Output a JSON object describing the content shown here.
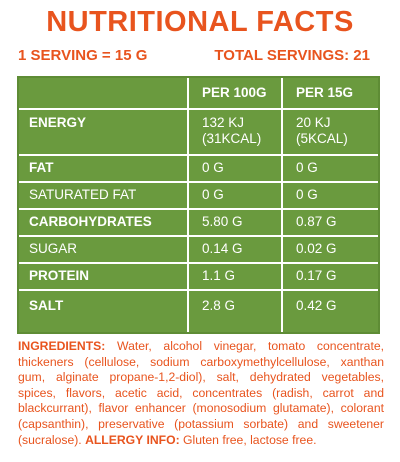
{
  "title": "NUTRITIONAL FACTS",
  "serving": {
    "size": "1 SERVING = 15 G",
    "total": "TOTAL SERVINGS: 21"
  },
  "table": {
    "headers": [
      "PER 100G",
      "PER 15G"
    ],
    "rows": [
      {
        "label": "ENERGY",
        "per100": "132 KJ\n(31KCAL)",
        "per15": "20 KJ\n(5KCAL)"
      },
      {
        "label": "FAT",
        "per100": "0 G",
        "per15": "0 G"
      },
      {
        "label": "SATURATED FAT",
        "per100": "0 G",
        "per15": "0 G"
      },
      {
        "label": "CARBOHYDRATES",
        "per100": "5.80 G",
        "per15": "0.87 G"
      },
      {
        "label": "SUGAR",
        "per100": "0.14 G",
        "per15": "0.02 G"
      },
      {
        "label": "PROTEIN",
        "per100": "1.1 G",
        "per15": "0.17 G"
      },
      {
        "label": "SALT",
        "per100": "2.8 G",
        "per15": "0.42 G"
      }
    ]
  },
  "ingredients": {
    "label": "INGREDIENTS:",
    "text": "Water, alcohol vinegar, tomato concentrate, thickeners (cellulose, sodium carboxymethylcellulose, xanthan gum, alginate propane-1,2-diol), salt, dehydrated vegetables, spices, flavors, acetic acid, concentrates (radish, carrot and blackcurrant), flavor enhancer (monosodium glutamate), colorant (capsanthin), preservative (potassium sorbate) and sweetener (sucralose).",
    "allergy_label": "ALLERGY INFO:",
    "allergy_text": "Gluten free, lactose free."
  },
  "colors": {
    "accent": "#e8541e",
    "panel": "#6a9a3e",
    "lines": "#ffffff"
  }
}
